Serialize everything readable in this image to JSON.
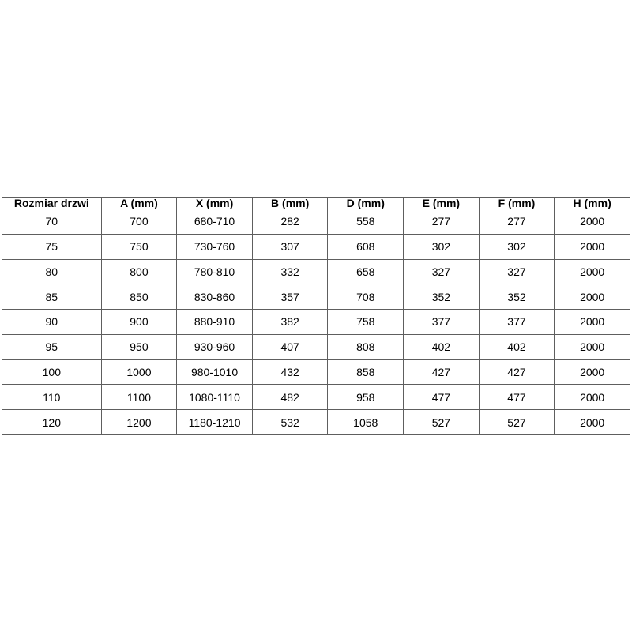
{
  "page": {
    "background": "#ffffff",
    "text_color": "#000000",
    "table_border_color": "#5e5e5e"
  },
  "chart_data": {
    "type": "table",
    "title": "",
    "columns": [
      "Rozmiar drzwi",
      "A (mm)",
      "X (mm)",
      "B (mm)",
      "D (mm)",
      "E (mm)",
      "F (mm)",
      "H (mm)"
    ],
    "rows": [
      [
        "70",
        "700",
        "680-710",
        "282",
        "558",
        "277",
        "277",
        "2000"
      ],
      [
        "75",
        "750",
        "730-760",
        "307",
        "608",
        "302",
        "302",
        "2000"
      ],
      [
        "80",
        "800",
        "780-810",
        "332",
        "658",
        "327",
        "327",
        "2000"
      ],
      [
        "85",
        "850",
        "830-860",
        "357",
        "708",
        "352",
        "352",
        "2000"
      ],
      [
        "90",
        "900",
        "880-910",
        "382",
        "758",
        "377",
        "377",
        "2000"
      ],
      [
        "95",
        "950",
        "930-960",
        "407",
        "808",
        "402",
        "402",
        "2000"
      ],
      [
        "100",
        "1000",
        "980-1010",
        "432",
        "858",
        "427",
        "427",
        "2000"
      ],
      [
        "110",
        "1100",
        "1080-1110",
        "482",
        "958",
        "477",
        "477",
        "2000"
      ],
      [
        "120",
        "1200",
        "1180-1210",
        "532",
        "1058",
        "527",
        "527",
        "2000"
      ]
    ]
  }
}
